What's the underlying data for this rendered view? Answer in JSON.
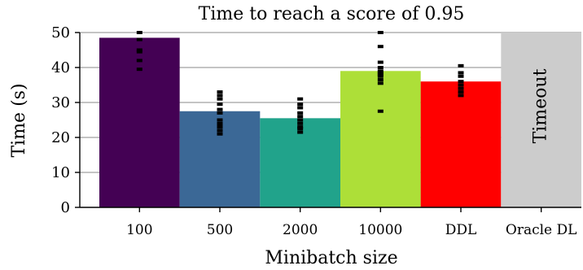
{
  "chart_data": {
    "type": "bar",
    "title": "Time to reach a score of 0.95",
    "xlabel": "Minibatch size",
    "ylabel": "Time (s)",
    "ylim": [
      0,
      50
    ],
    "yticks": [
      0,
      10,
      20,
      30,
      40,
      50
    ],
    "grid": "horizontal",
    "categories": [
      "100",
      "500",
      "2000",
      "10000",
      "DDL",
      "Oracle DL"
    ],
    "values": [
      48.5,
      27.5,
      25.5,
      39,
      36,
      null
    ],
    "colors": [
      "#440154",
      "#3b6896",
      "#21a38b",
      "#addf38",
      "#ff0000",
      "#cccccc"
    ],
    "annotations": [
      {
        "category": "Oracle DL",
        "text": "Timeout"
      }
    ],
    "points": [
      [
        39.5,
        42,
        44.5,
        45,
        48,
        50
      ],
      [
        21,
        22,
        23,
        23.5,
        24,
        25,
        27,
        28,
        29.5,
        31,
        32,
        33
      ],
      [
        21.5,
        22.5,
        23,
        24,
        25,
        26,
        27,
        28.5,
        29.5,
        31
      ],
      [
        27.5,
        35.5,
        36.5,
        37.5,
        38,
        38.5,
        39,
        40,
        41.5,
        46,
        50
      ],
      [
        32,
        33,
        34,
        35,
        36,
        37.5,
        38.5,
        40.5
      ],
      []
    ]
  }
}
